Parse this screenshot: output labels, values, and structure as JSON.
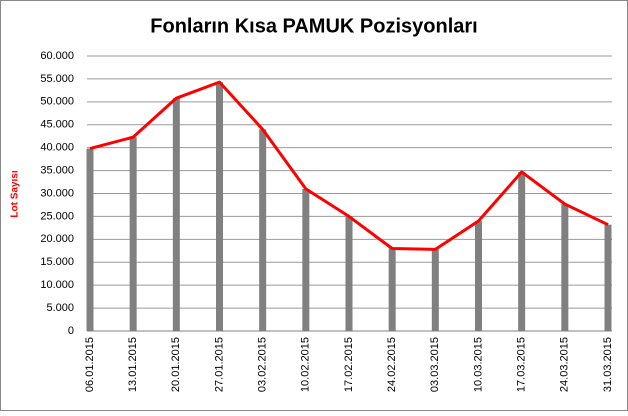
{
  "chart_data": {
    "type": "bar_line",
    "title": "Fonların Kısa PAMUK Pozisyonları",
    "y_label": "Lot Sayısı",
    "categories": [
      "06.01.2015",
      "13.01.2015",
      "20.01.2015",
      "27.01.2015",
      "03.02.2015",
      "10.02.2015",
      "17.02.2015",
      "24.02.2015",
      "03.03.2015",
      "10.03.2015",
      "17.03.2015",
      "24.03.2015",
      "31.03.2015"
    ],
    "values": [
      39800,
      42300,
      50800,
      54300,
      44000,
      31000,
      25000,
      18000,
      17800,
      24000,
      34700,
      27700,
      23200
    ],
    "bar_color": "#808080",
    "line_color": "#ff0000",
    "y_label_color": "#ff0000",
    "ylim": [
      0,
      60000
    ],
    "yticks": [
      0,
      {
        "value": 5000,
        "label": "5.000"
      },
      {
        "value": 10000,
        "label": "10.000"
      },
      {
        "value": 15000,
        "label": "15.000"
      },
      {
        "value": 20000,
        "label": "20.000"
      },
      {
        "value": 25000,
        "label": "25.000"
      },
      {
        "value": 30000,
        "label": "30.000"
      },
      {
        "value": 35000,
        "label": "35.000"
      },
      {
        "value": 40000,
        "label": "40.000"
      },
      {
        "value": 45000,
        "label": "45.000"
      },
      {
        "value": 50000,
        "label": "50.000"
      },
      {
        "value": 55000,
        "label": "55.000"
      },
      {
        "value": 60000,
        "label": "60.000"
      }
    ],
    "grid": true
  }
}
